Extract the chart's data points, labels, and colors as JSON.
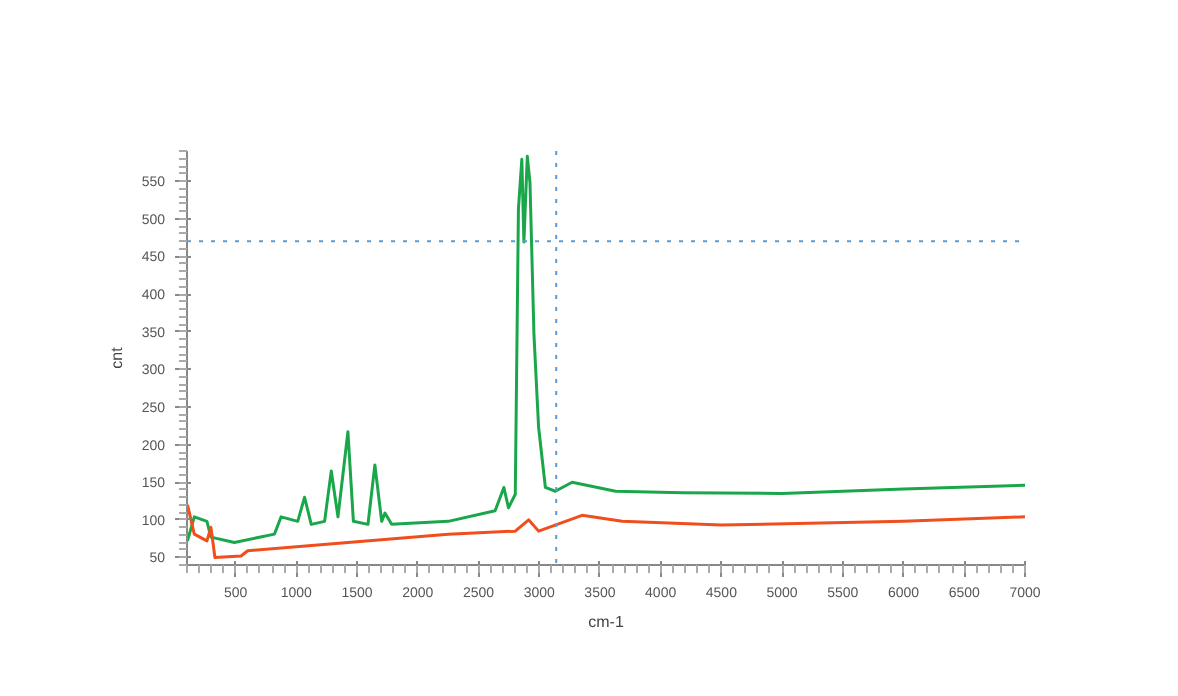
{
  "chart_data": {
    "type": "line",
    "xlabel": "cm-1",
    "ylabel": "cnt",
    "xlim": [
      100,
      7000
    ],
    "ylim": [
      40,
      590
    ],
    "xticks": [
      500,
      1000,
      1500,
      2000,
      2500,
      3000,
      3500,
      4000,
      4500,
      5000,
      5500,
      6000,
      6500,
      7000
    ],
    "yticks": [
      50,
      100,
      150,
      200,
      250,
      300,
      350,
      400,
      450,
      500,
      550
    ],
    "grid": false,
    "line_style": "solid",
    "marker": "none",
    "ref_lines": [
      {
        "axis": "y",
        "value": 470,
        "color": "#5b9bd5",
        "line_style": "dotted"
      },
      {
        "axis": "x",
        "value": 3140,
        "color": "#5b9bd5",
        "line_style": "dotted"
      }
    ],
    "series": [
      {
        "color": "#1aa64a",
        "x": [
          104,
          160,
          264,
          297,
          490,
          820,
          875,
          1012,
          1068,
          1123,
          1233,
          1288,
          1343,
          1425,
          1470,
          1590,
          1647,
          1703,
          1730,
          1785,
          2251,
          2637,
          2709,
          2747,
          2803,
          2829,
          2857,
          2874,
          2902,
          2924,
          2957,
          2995,
          3051,
          3133,
          3271,
          3629,
          4180,
          5000,
          6000,
          7000
        ],
        "values": [
          72,
          104,
          98,
          77,
          70,
          81,
          104,
          98,
          130,
          94,
          98,
          165,
          104,
          217,
          98,
          94,
          173,
          98,
          109,
          94,
          98,
          112,
          143,
          116,
          134,
          513,
          579,
          469,
          583,
          548,
          345,
          223,
          143,
          138,
          150,
          138,
          136,
          135,
          141,
          146
        ]
      },
      {
        "color": "#f04e1c",
        "x": [
          104,
          160,
          264,
          297,
          330,
          545,
          600,
          1425,
          2251,
          2803,
          2913,
          2995,
          3353,
          3683,
          4500,
          6000,
          7000
        ],
        "values": [
          120,
          81,
          72,
          90,
          50,
          52,
          59,
          70,
          81,
          85,
          100,
          85,
          106,
          98,
          93,
          98,
          104
        ]
      }
    ]
  }
}
